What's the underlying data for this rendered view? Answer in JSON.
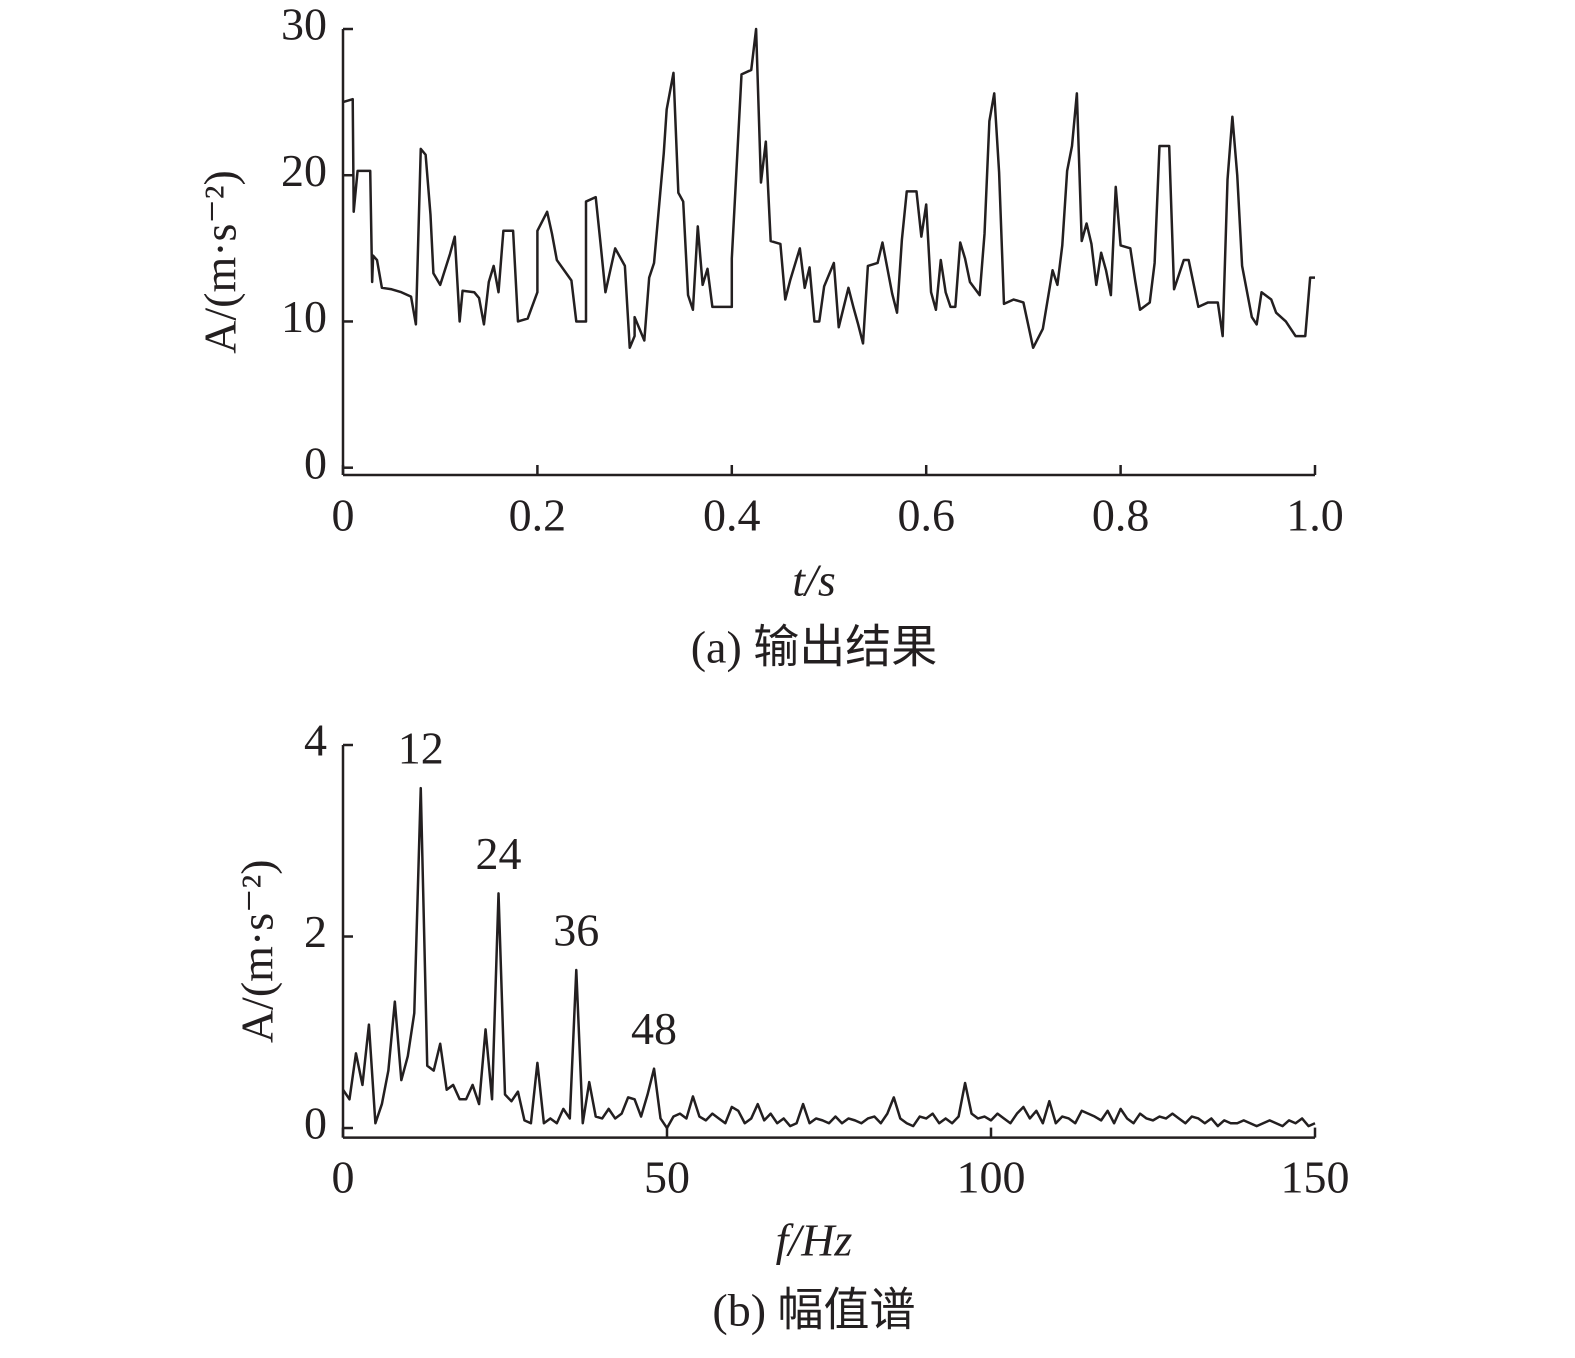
{
  "chart_data": [
    {
      "type": "line",
      "caption": "(a) 输出结果",
      "xlabel": "t/s",
      "ylabel": "A/(m·s⁻²)",
      "color": "#231f20",
      "xlim": [
        0,
        1
      ],
      "xticks": [
        0,
        0.2,
        0.4,
        0.6,
        0.8,
        {
          "value": 1,
          "label": "1.0"
        }
      ],
      "ylim": [
        -0.5,
        30
      ],
      "yticks": [
        0,
        10,
        20,
        30
      ],
      "x": [
        0,
        0.01,
        0.011,
        0.015,
        0.028,
        0.03,
        0.031,
        0.035,
        0.04,
        0.05,
        0.06,
        0.07,
        0.075,
        0.08,
        0.085,
        0.09,
        0.093,
        0.1,
        0.11,
        0.115,
        0.12,
        0.123,
        0.135,
        0.14,
        0.145,
        0.15,
        0.155,
        0.16,
        0.165,
        0.175,
        0.18,
        0.19,
        0.2,
        0.2,
        0.21,
        0.215,
        0.22,
        0.235,
        0.24,
        0.25,
        0.25,
        0.26,
        0.265,
        0.27,
        0.275,
        0.28,
        0.29,
        0.295,
        0.3,
        0.3,
        0.31,
        0.315,
        0.32,
        0.33,
        0.333,
        0.34,
        0.345,
        0.35,
        0.355,
        0.36,
        0.365,
        0.37,
        0.375,
        0.38,
        0.39,
        0.4,
        0.4,
        0.41,
        0.42,
        0.425,
        0.43,
        0.435,
        0.44,
        0.45,
        0.455,
        0.46,
        0.47,
        0.475,
        0.48,
        0.485,
        0.49,
        0.495,
        0.5,
        0.505,
        0.51,
        0.52,
        0.525,
        0.53,
        0.535,
        0.54,
        0.55,
        0.555,
        0.565,
        0.57,
        0.575,
        0.58,
        0.59,
        0.595,
        0.6,
        0.605,
        0.61,
        0.615,
        0.62,
        0.625,
        0.63,
        0.635,
        0.64,
        0.645,
        0.655,
        0.66,
        0.665,
        0.67,
        0.675,
        0.68,
        0.69,
        0.7,
        0.71,
        0.72,
        0.73,
        0.735,
        0.74,
        0.745,
        0.75,
        0.755,
        0.76,
        0.765,
        0.77,
        0.775,
        0.78,
        0.785,
        0.79,
        0.795,
        0.8,
        0.81,
        0.815,
        0.82,
        0.83,
        0.835,
        0.84,
        0.85,
        0.855,
        0.86,
        0.865,
        0.87,
        0.88,
        0.89,
        0.9,
        0.905,
        0.91,
        0.915,
        0.92,
        0.925,
        0.935,
        0.94,
        0.945,
        0.955,
        0.96,
        0.97,
        0.98,
        0.99,
        0.995,
        1
      ],
      "values": [
        25,
        25.2,
        17.5,
        20.3,
        20.3,
        12.7,
        14.5,
        14.2,
        12.3,
        12.2,
        12,
        11.7,
        9.8,
        21.8,
        21.4,
        17.3,
        13.3,
        12.5,
        14.6,
        15.8,
        10,
        12.1,
        12,
        11.6,
        9.8,
        12.7,
        13.8,
        12,
        16.2,
        16.2,
        10,
        10.2,
        12,
        16.2,
        17.5,
        16,
        14.2,
        12.8,
        10,
        10,
        18.2,
        18.5,
        15.3,
        12,
        13.5,
        15,
        13.8,
        8.2,
        9,
        10.3,
        8.7,
        13,
        14,
        21.5,
        24.5,
        27,
        18.8,
        18.2,
        11.8,
        10.8,
        16.5,
        12.5,
        13.6,
        11,
        11,
        11,
        14.3,
        26.9,
        27.2,
        30,
        19.5,
        22.3,
        15.5,
        15.3,
        11.5,
        12.8,
        15,
        12.3,
        13.7,
        10,
        10,
        12.4,
        13.2,
        14,
        9.6,
        12.3,
        11,
        9.8,
        8.5,
        13.8,
        14,
        15.4,
        11.9,
        10.6,
        15.6,
        18.9,
        18.9,
        15.8,
        18,
        12,
        10.8,
        14.2,
        12,
        11,
        11,
        15.4,
        14.3,
        12.7,
        11.8,
        16,
        23.7,
        25.6,
        20.2,
        11.2,
        11.5,
        11.3,
        8.2,
        9.5,
        13.5,
        12.5,
        15.2,
        20.3,
        22,
        25.6,
        15.5,
        16.7,
        15.3,
        12.5,
        14.7,
        13.5,
        11.8,
        19.2,
        15.2,
        15,
        12.8,
        10.8,
        11.3,
        14,
        22,
        22,
        12.2,
        13.2,
        14.2,
        14.2,
        11,
        11.3,
        11.3,
        9,
        19.7,
        24,
        20,
        13.8,
        10.3,
        9.8,
        12,
        11.5,
        10.6,
        10,
        9,
        9,
        13,
        13
      ]
    },
    {
      "type": "line",
      "caption": "(b) 幅值谱",
      "xlabel": "f/Hz",
      "ylabel": "A/(m·s⁻²)",
      "color": "#231f20",
      "xlim": [
        0,
        150
      ],
      "xticks": [
        0,
        50,
        100,
        150
      ],
      "ylim": [
        -0.1,
        4
      ],
      "yticks": [
        0,
        2,
        4
      ],
      "annotations": [
        {
          "text": "12",
          "x": 12,
          "y": 3.55
        },
        {
          "text": "24",
          "x": 24,
          "y": 2.45
        },
        {
          "text": "36",
          "x": 36,
          "y": 1.65
        },
        {
          "text": "48",
          "x": 48,
          "y": 0.62
        }
      ],
      "x": [
        0,
        1,
        2,
        3,
        4,
        5,
        6,
        7,
        8,
        9,
        10,
        11,
        12,
        13,
        14,
        15,
        16,
        17,
        18,
        19,
        20,
        21,
        22,
        23,
        24,
        25,
        26,
        27,
        28,
        29,
        30,
        31,
        32,
        33,
        34,
        35,
        36,
        37,
        38,
        39,
        40,
        41,
        42,
        43,
        44,
        45,
        46,
        47,
        48,
        49,
        50,
        51,
        52,
        53,
        54,
        55,
        56,
        57,
        58,
        59,
        60,
        61,
        62,
        63,
        64,
        65,
        66,
        67,
        68,
        69,
        70,
        71,
        72,
        73,
        74,
        75,
        76,
        77,
        78,
        79,
        80,
        81,
        82,
        83,
        84,
        85,
        86,
        87,
        88,
        89,
        90,
        91,
        92,
        93,
        94,
        95,
        96,
        97,
        98,
        99,
        100,
        101,
        102,
        103,
        104,
        105,
        106,
        107,
        108,
        109,
        110,
        111,
        112,
        113,
        114,
        115,
        116,
        117,
        118,
        119,
        120,
        121,
        122,
        123,
        124,
        125,
        126,
        127,
        128,
        129,
        130,
        131,
        132,
        133,
        134,
        135,
        136,
        137,
        138,
        139,
        140,
        141,
        142,
        143,
        144,
        145,
        146,
        147,
        148,
        149,
        150
      ],
      "values": [
        0.4,
        0.3,
        0.78,
        0.45,
        1.08,
        0.05,
        0.25,
        0.6,
        1.32,
        0.5,
        0.75,
        1.2,
        3.55,
        0.65,
        0.6,
        0.88,
        0.4,
        0.45,
        0.3,
        0.3,
        0.45,
        0.25,
        1.03,
        0.3,
        2.45,
        0.35,
        0.28,
        0.38,
        0.08,
        0.05,
        0.68,
        0.05,
        0.1,
        0.05,
        0.2,
        0.1,
        1.65,
        0.05,
        0.48,
        0.12,
        0.1,
        0.2,
        0.1,
        0.15,
        0.32,
        0.3,
        0.12,
        0.35,
        0.62,
        0.1,
        0.0,
        0.12,
        0.15,
        0.1,
        0.33,
        0.12,
        0.08,
        0.15,
        0.1,
        0.05,
        0.22,
        0.18,
        0.05,
        0.1,
        0.25,
        0.08,
        0.15,
        0.05,
        0.1,
        0.02,
        0.05,
        0.25,
        0.05,
        0.1,
        0.08,
        0.05,
        0.12,
        0.05,
        0.1,
        0.08,
        0.05,
        0.1,
        0.12,
        0.05,
        0.15,
        0.32,
        0.1,
        0.05,
        0.02,
        0.12,
        0.1,
        0.15,
        0.05,
        0.1,
        0.05,
        0.12,
        0.47,
        0.15,
        0.1,
        0.12,
        0.08,
        0.15,
        0.1,
        0.05,
        0.15,
        0.22,
        0.1,
        0.18,
        0.05,
        0.28,
        0.05,
        0.12,
        0.1,
        0.05,
        0.18,
        0.15,
        0.12,
        0.08,
        0.18,
        0.05,
        0.2,
        0.1,
        0.05,
        0.15,
        0.1,
        0.08,
        0.12,
        0.1,
        0.15,
        0.1,
        0.05,
        0.12,
        0.1,
        0.05,
        0.1,
        0.02,
        0.08,
        0.05,
        0.05,
        0.08,
        0.05,
        0.02,
        0.05,
        0.08,
        0.05,
        0.02,
        0.08,
        0.05,
        0.1,
        0.02,
        0.05
      ]
    }
  ]
}
